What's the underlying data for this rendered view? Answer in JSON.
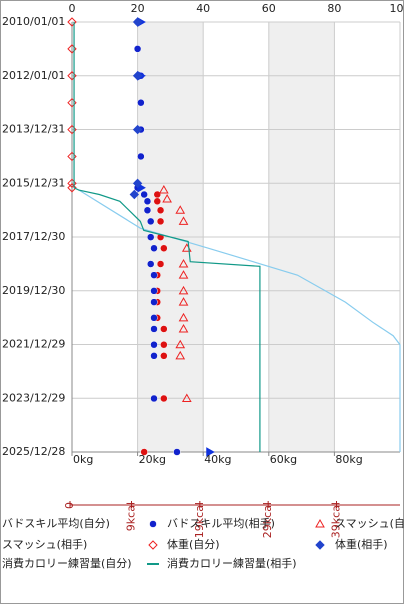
{
  "chart_data": {
    "type": "scatter",
    "ylim": [
      "2010/01/01",
      "2025/12/28"
    ],
    "yticks": [
      "2010/01/01",
      "2012/01/01",
      "2013/12/31",
      "2015/12/31",
      "2017/12/30",
      "2019/12/30",
      "2021/12/29",
      "2023/12/29",
      "2025/12/28"
    ],
    "xlim": [
      0,
      100
    ],
    "xticks": [
      0,
      20,
      40,
      60,
      80,
      100
    ],
    "x2ticks": [
      {
        "value": 0,
        "label": "0kg"
      },
      {
        "value": 20,
        "label": "20kg"
      },
      {
        "value": 40,
        "label": "40kg"
      },
      {
        "value": 60,
        "label": "60kg"
      },
      {
        "value": 80,
        "label": "80kg"
      }
    ],
    "x3lim": [
      0,
      48
    ],
    "x3ticks": [
      0,
      {
        "value": 9,
        "label": "9kcal"
      },
      {
        "value": 19,
        "label": "19kcal"
      },
      {
        "value": 29,
        "label": "29kcal"
      },
      {
        "value": 39,
        "label": "39kcal"
      }
    ],
    "bands": [
      [
        20,
        40
      ],
      [
        60,
        80
      ]
    ],
    "grid": true,
    "series": [
      {
        "name": "バドスキル平均(自分)",
        "color": "#dd1111",
        "marker": "circle",
        "filled": true,
        "dates": [
          "2016/06/01",
          "2016/09/01",
          "2017/01/01",
          "2017/06/01",
          "2018/01/01",
          "2018/06/01",
          "2019/01/01",
          "2019/06/01",
          "2020/01/01",
          "2020/06/01",
          "2021/01/01",
          "2021/06/01",
          "2022/01/01",
          "2022/06/01",
          "2024/01/01",
          "2025/12/28"
        ],
        "values": [
          26,
          26,
          27,
          27,
          27,
          28,
          27,
          26,
          26,
          26,
          26,
          28,
          28,
          28,
          28,
          22
        ]
      },
      {
        "name": "バドスキル平均(相手)",
        "color": "#1122cc",
        "marker": "circle",
        "filled": true,
        "dates": [
          "2010/01/01",
          "2011/01/01",
          "2012/01/01",
          "2013/01/01",
          "2014/01/01",
          "2015/01/01",
          "2016/01/01",
          "2016/03/01",
          "2016/06/01",
          "2016/09/01",
          "2017/01/01",
          "2017/06/01",
          "2018/01/01",
          "2018/06/01",
          "2019/01/01",
          "2019/06/01",
          "2020/01/01",
          "2020/06/01",
          "2021/01/01",
          "2021/06/01",
          "2022/01/01",
          "2022/06/01",
          "2024/01/01",
          "2025/12/28"
        ],
        "values": [
          20,
          20,
          21,
          21,
          21,
          21,
          20,
          20,
          22,
          23,
          23,
          24,
          24,
          25,
          24,
          25,
          25,
          25,
          25,
          25,
          25,
          25,
          25,
          32
        ]
      },
      {
        "name": "スマッシュ(自分)",
        "color": "#ee2222",
        "marker": "triangle",
        "filled": false,
        "dates": [
          "2016/04/01",
          "2016/08/01",
          "2017/01/01",
          "2017/06/01",
          "2018/06/01",
          "2019/01/01",
          "2019/06/01",
          "2020/01/01",
          "2020/06/01",
          "2021/01/01",
          "2021/06/01",
          "2022/01/01",
          "2022/06/01",
          "2024/01/01"
        ],
        "values": [
          28,
          29,
          33,
          34,
          35,
          34,
          34,
          34,
          34,
          34,
          34,
          33,
          33,
          35
        ]
      },
      {
        "name": "スマッシュ(相手)",
        "color": "#1133dd",
        "marker": "triangle",
        "filled": true,
        "dates": [
          "2010/01/01",
          "2012/01/01",
          "2016/03/01",
          "2025/12/28"
        ],
        "values": [
          21,
          21,
          21,
          42
        ]
      },
      {
        "name": "体重(自分)",
        "color": "#ee2222",
        "marker": "diamond",
        "filled": false,
        "dates": [
          "2010/01/01",
          "2011/01/01",
          "2012/01/01",
          "2013/01/01",
          "2014/01/01",
          "2015/01/01",
          "2016/01/01",
          "2016/03/01"
        ],
        "values": [
          0,
          0,
          0,
          0,
          0,
          0,
          0,
          0
        ]
      },
      {
        "name": "体重(相手)",
        "color": "#2244cc",
        "marker": "diamond",
        "filled": true,
        "dates": [
          "2010/01/01",
          "2012/01/01",
          "2014/01/01",
          "2016/01/01",
          "2016/06/01"
        ],
        "values": [
          20,
          20,
          20,
          20,
          19
        ]
      },
      {
        "name": "消費カロリー練習量(自分)",
        "color": "#88ccee",
        "marker": "line",
        "axis": "x3",
        "dates": [
          "2016/04/01",
          "2017/09/01",
          "2018/06/01",
          "2019/06/01",
          "2020/06/01",
          "2021/03/01",
          "2021/09/01",
          "2022/01/01",
          "2025/12/28"
        ],
        "values": [
          1,
          10,
          20,
          33,
          40,
          44,
          47,
          48,
          48
        ]
      },
      {
        "name": "消費カロリー練習量(相手)",
        "color": "#119988",
        "marker": "line",
        "axis": "x3",
        "dates": [
          "2010/01/01",
          "2016/03/01",
          "2016/04/01",
          "2016/06/01",
          "2016/09/01",
          "2017/06/01",
          "2017/10/01",
          "2018/03/01",
          "2018/12/01",
          "2019/02/01",
          "2025/12/28"
        ],
        "values": [
          0.3,
          0.3,
          1,
          4,
          7,
          10,
          10.5,
          17,
          17.3,
          27.5,
          27.5
        ]
      }
    ]
  }
}
